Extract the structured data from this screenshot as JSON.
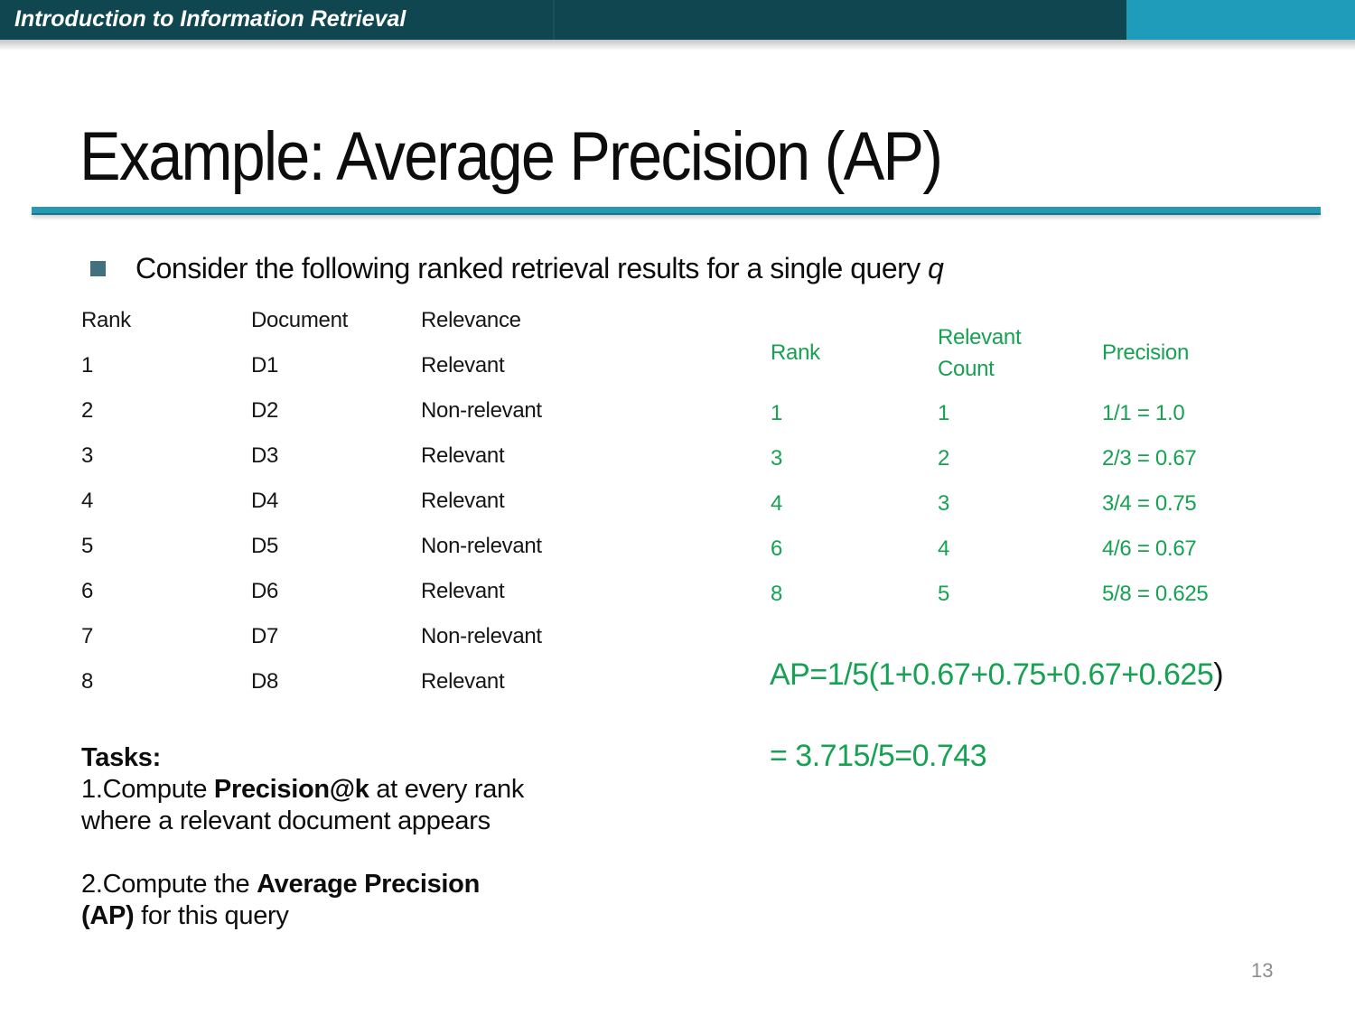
{
  "header": {
    "title": "Introduction to Information Retrieval"
  },
  "slide": {
    "title": "Example: Average Precision (AP)",
    "page_number": "13"
  },
  "bullet": {
    "text": "Consider the following ranked retrieval results for a single query ",
    "query_var": "q"
  },
  "results_table": {
    "headers": [
      "Rank",
      "Document",
      "Relevance"
    ],
    "rows": [
      [
        "1",
        "D1",
        "Relevant"
      ],
      [
        "2",
        "D2",
        "Non-relevant"
      ],
      [
        "3",
        "D3",
        "Relevant"
      ],
      [
        "4",
        "D4",
        "Relevant"
      ],
      [
        "5",
        "D5",
        "Non-relevant"
      ],
      [
        "6",
        "D6",
        "Relevant"
      ],
      [
        "7",
        "D7",
        "Non-relevant"
      ],
      [
        "8",
        "D8",
        "Relevant"
      ]
    ]
  },
  "precision_table": {
    "headers": [
      "Rank",
      "Relevant Count",
      "Precision"
    ],
    "rows": [
      [
        "1",
        "1",
        "1/1 = 1.0"
      ],
      [
        "3",
        "2",
        "2/3 = 0.67"
      ],
      [
        "4",
        "3",
        "3/4 = 0.75"
      ],
      [
        "6",
        "4",
        "4/6 = 0.67"
      ],
      [
        "8",
        "5",
        "5/8 = 0.625"
      ]
    ]
  },
  "ap": {
    "line1_green": "AP=1/5(1+0.67+0.75+0.67+0.625",
    "line1_black_paren": ")",
    "line2": "= 3.715/5=0.743"
  },
  "tasks": {
    "heading": "Tasks:",
    "item1_pre": "1.Compute ",
    "item1_bold": "Precision@k",
    "item1_post": " at every rank",
    "item1_line2": "where a relevant document appears",
    "item2_pre": "2.Compute the ",
    "item2_bold": "Average Precision",
    "item2_line2_bold": "(AP)",
    "item2_line2_post": " for this query"
  },
  "colors": {
    "header_dark_teal": "#0f4650",
    "header_accent_teal": "#1e9cba",
    "title_rule_teal": "#2798b2",
    "table_green": "#17a253",
    "bullet_square": "#41707f",
    "page_number_gray": "#8c8c8c"
  }
}
